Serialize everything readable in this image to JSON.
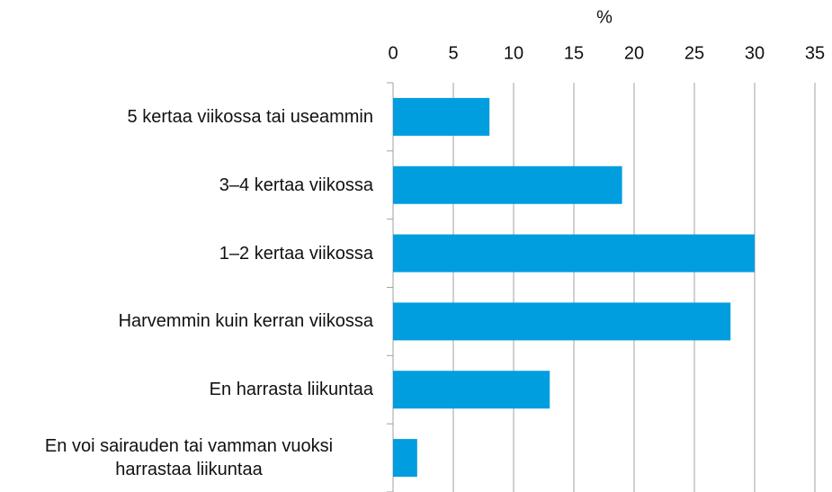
{
  "chart_data": {
    "type": "bar",
    "orientation": "horizontal",
    "x_label": "%",
    "categories": [
      "5 kertaa viikossa tai useammin",
      "3–4 kertaa viikossa",
      "1–2 kertaa viikossa",
      "Harvemmin kuin kerran viikossa",
      "En harrasta liikuntaa",
      "En voi sairauden tai vamman vuoksi harrastaa liikuntaa"
    ],
    "values": [
      8,
      19,
      30,
      28,
      13,
      2
    ],
    "color": "#009ddf",
    "xlim": [
      0,
      35
    ],
    "xticks": [
      0,
      5,
      10,
      15,
      20,
      25,
      30,
      35
    ],
    "grid": true
  }
}
